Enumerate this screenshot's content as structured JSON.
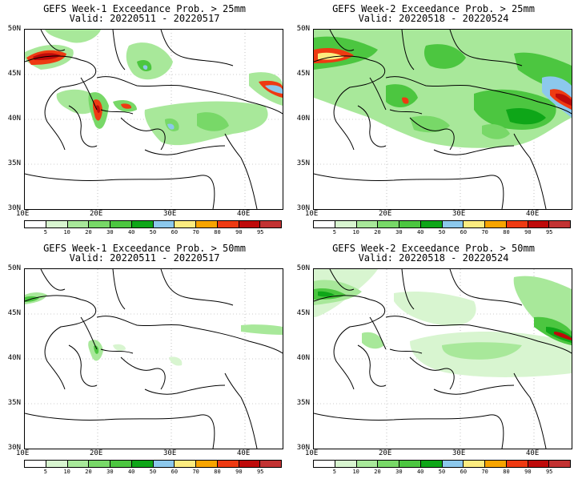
{
  "panels": [
    {
      "id": "p1",
      "title_line1": "GEFS Week-1 Exceedance Prob. > 25mm",
      "title_line2": "Valid: 20220511 - 20220517"
    },
    {
      "id": "p2",
      "title_line1": "GEFS Week-2 Exceedance Prob. > 25mm",
      "title_line2": "Valid: 20220518 - 20220524"
    },
    {
      "id": "p3",
      "title_line1": "GEFS Week-1 Exceedance Prob. > 50mm",
      "title_line2": "Valid: 20220511 - 20220517"
    },
    {
      "id": "p4",
      "title_line1": "GEFS Week-2 Exceedance Prob. > 50mm",
      "title_line2": "Valid: 20220518 - 20220524"
    }
  ],
  "lat_labels": [
    "50N",
    "45N",
    "40N",
    "35N",
    "30N"
  ],
  "lon_labels": [
    "10E",
    "20E",
    "30E",
    "40E"
  ],
  "colorbar": {
    "labels": [
      "5",
      "10",
      "20",
      "30",
      "40",
      "50",
      "60",
      "70",
      "80",
      "90",
      "95"
    ],
    "colors": [
      "#ffffff",
      "#d8f5d0",
      "#a8e89a",
      "#78d868",
      "#4cc640",
      "#0ea618",
      "#8cc8ec",
      "#fcec80",
      "#f8a400",
      "#ee3a12",
      "#be0a0a",
      "#c23232"
    ]
  },
  "colors": {
    "land_border": "#000000",
    "grid": "#9a9a9a"
  }
}
